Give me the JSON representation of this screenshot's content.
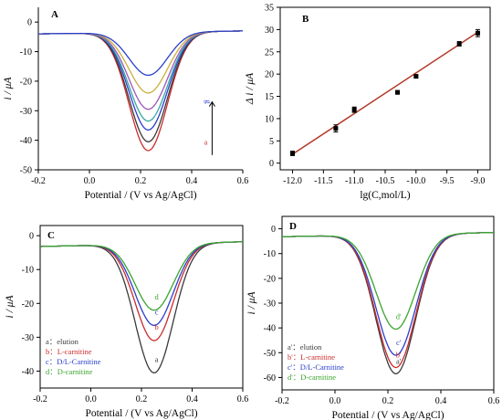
{
  "colors": {
    "black": "#3a3a3a",
    "red": "#cc2b2b",
    "blue": "#2b3fcc",
    "green": "#3aa52e",
    "purple": "#9b58b5",
    "olive": "#c9b03b",
    "teal": "#3aa6a6",
    "fitline": "#b23a2a"
  },
  "chart_data": [
    {
      "panel": "A",
      "type": "line",
      "xlabel": "Potential / (V vs Ag/AgCl)",
      "ylabel": "i / μA",
      "xlim": [
        -0.2,
        0.6
      ],
      "ylim": [
        -50,
        5
      ],
      "xticks": [
        "-0.2",
        "0.0",
        "0.2",
        "0.4",
        "0.6"
      ],
      "yticks": [
        "0",
        "-10",
        "-20",
        "-30",
        "-40",
        "-50"
      ],
      "annotations": [
        "a",
        "g"
      ],
      "peak_x": 0.23,
      "series": [
        {
          "id": "a",
          "peak": -43.5,
          "color": "#cc2b2b"
        },
        {
          "id": "b",
          "peak": -40.5,
          "color": "#3a3a3a"
        },
        {
          "id": "c",
          "peak": -36.5,
          "color": "#2b3fcc"
        },
        {
          "id": "d",
          "peak": -33.5,
          "color": "#3aa6a6"
        },
        {
          "id": "e",
          "peak": -29.5,
          "color": "#9b58b5"
        },
        {
          "id": "f",
          "peak": -24.0,
          "color": "#c9b03b"
        },
        {
          "id": "g",
          "peak": -18.0,
          "color": "#2b3fcc"
        }
      ]
    },
    {
      "panel": "B",
      "type": "scatter",
      "xlabel": "lg(C,mol/L)",
      "ylabel": "Δ i / μA",
      "xlim": [
        -12.2,
        -8.8
      ],
      "ylim": [
        -1.5,
        35
      ],
      "xticks": [
        "-12.0",
        "-11.5",
        "-11.0",
        "-10.5",
        "-10.0",
        "-9.5",
        "-9.0"
      ],
      "yticks": [
        "0",
        "5",
        "10",
        "15",
        "20",
        "25",
        "30",
        "35"
      ],
      "points": [
        {
          "x": -12.0,
          "y": 2.2,
          "err": 0.5
        },
        {
          "x": -11.3,
          "y": 7.8,
          "err": 0.8
        },
        {
          "x": -11.0,
          "y": 12.0,
          "err": 0.6
        },
        {
          "x": -10.3,
          "y": 15.9,
          "err": 0.4
        },
        {
          "x": -10.0,
          "y": 19.5,
          "err": 0.3
        },
        {
          "x": -9.3,
          "y": 26.8,
          "err": 0.5
        },
        {
          "x": -9.0,
          "y": 29.2,
          "err": 0.8
        }
      ],
      "fit": {
        "x": [
          -12.0,
          -9.0
        ],
        "y": [
          2.0,
          29.4
        ]
      }
    },
    {
      "panel": "C",
      "type": "line",
      "xlabel": "Potential / (V vs Ag/AgCl)",
      "ylabel": "i / μA",
      "xlim": [
        -0.2,
        0.6
      ],
      "ylim": [
        -45,
        3
      ],
      "xticks": [
        "-0.2",
        "0.0",
        "0.2",
        "0.4",
        "0.6"
      ],
      "yticks": [
        "0",
        "-10",
        "-20",
        "-30",
        "-40"
      ],
      "peak_x": 0.25,
      "series": [
        {
          "id": "a",
          "name": "elution",
          "peak": -40.5,
          "color": "#3a3a3a"
        },
        {
          "id": "b",
          "name": "L-carnitine",
          "peak": -31.0,
          "color": "#cc2b2b"
        },
        {
          "id": "c",
          "name": "D/L-Carnitine",
          "peak": -26.5,
          "color": "#2b3fcc"
        },
        {
          "id": "d",
          "name": "D-carnitine",
          "peak": -22.0,
          "color": "#3aa52e"
        }
      ],
      "legend": [
        "a：elution",
        "b：L-carnitine",
        "c：D/L-Carnitine",
        "d：D-carnitine"
      ]
    },
    {
      "panel": "D",
      "type": "line",
      "xlabel": "Potential / (V vs Ag/AgCl)",
      "ylabel": "i / μA",
      "xlim": [
        -0.2,
        0.6
      ],
      "ylim": [
        -65,
        5
      ],
      "xticks": [
        "-0.2",
        "0.0",
        "0.2",
        "0.4",
        "0.6"
      ],
      "yticks": [
        "0",
        "-10",
        "-20",
        "-30",
        "-40",
        "-50",
        "-60"
      ],
      "peak_x": 0.23,
      "series": [
        {
          "id": "a'",
          "name": "elution",
          "peak": -58.5,
          "color": "#3a3a3a"
        },
        {
          "id": "b'",
          "name": "L-carnitine",
          "peak": -56.0,
          "color": "#cc2b2b"
        },
        {
          "id": "c'",
          "name": "D/L-Carnitine",
          "peak": -51.0,
          "color": "#2b3fcc"
        },
        {
          "id": "d'",
          "name": "D-carnitine",
          "peak": -40.5,
          "color": "#3aa52e"
        }
      ],
      "legend": [
        "a'：elution",
        "b'：L-carnitine",
        "c'：D/L-Carnitine",
        "d'：D-carnitine"
      ]
    }
  ]
}
